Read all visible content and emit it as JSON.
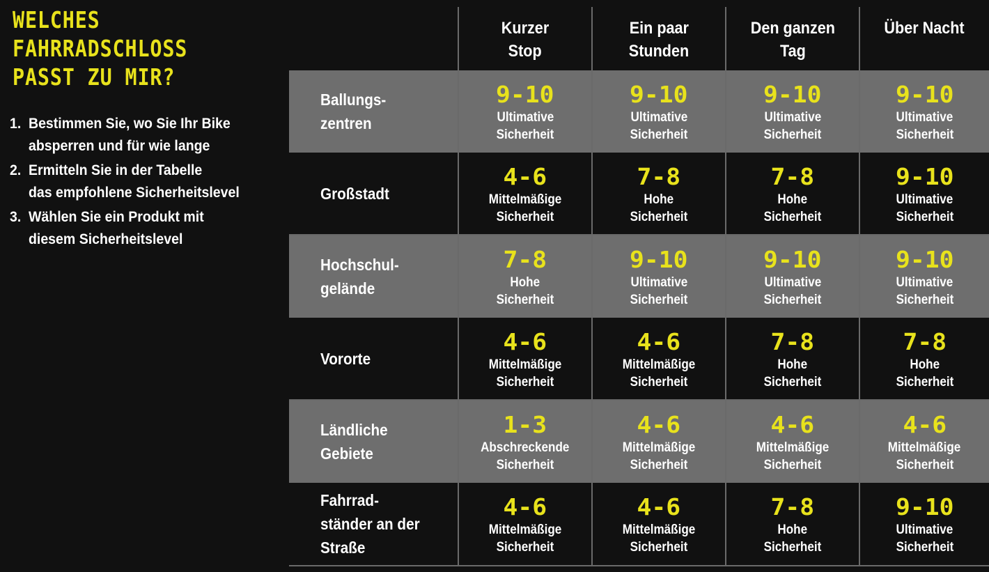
{
  "colors": {
    "background": "#111111",
    "accent_yellow": "#e8e21c",
    "row_grey": "#6e6e6e",
    "text_white": "#ffffff"
  },
  "headline": {
    "line1": "Welches",
    "line2": "Fahrradschloss",
    "line3": "passt zu mir?"
  },
  "steps": [
    {
      "num": "1.",
      "line1": "Bestimmen Sie, wo Sie Ihr Bike",
      "line2": "absperren und für wie lange"
    },
    {
      "num": "2.",
      "line1": "Ermitteln Sie in der Tabelle",
      "line2": "das empfohlene Sicherheitslevel"
    },
    {
      "num": "3.",
      "line1": "Wählen Sie ein Produkt mit",
      "line2": "diesem Sicherheitslevel"
    }
  ],
  "columns": [
    {
      "line1": "Kurzer",
      "line2": "Stop"
    },
    {
      "line1": "Ein paar",
      "line2": "Stunden"
    },
    {
      "line1": "Den ganzen",
      "line2": "Tag"
    },
    {
      "line1": "Über Nacht",
      "line2": ""
    }
  ],
  "rows": [
    {
      "label": [
        "Ballungs-",
        "zentren"
      ],
      "cells": [
        {
          "level": "9-10",
          "desc1": "Ultimative",
          "desc2": "Sicherheit"
        },
        {
          "level": "9-10",
          "desc1": "Ultimative",
          "desc2": "Sicherheit"
        },
        {
          "level": "9-10",
          "desc1": "Ultimative",
          "desc2": "Sicherheit"
        },
        {
          "level": "9-10",
          "desc1": "Ultimative",
          "desc2": "Sicherheit"
        }
      ]
    },
    {
      "label": [
        "Großstadt",
        "",
        ""
      ],
      "cells": [
        {
          "level": "4-6",
          "desc1": "Mittelmäßige",
          "desc2": "Sicherheit"
        },
        {
          "level": "7-8",
          "desc1": "Hohe",
          "desc2": "Sicherheit"
        },
        {
          "level": "7-8",
          "desc1": "Hohe",
          "desc2": "Sicherheit"
        },
        {
          "level": "9-10",
          "desc1": "Ultimative",
          "desc2": "Sicherheit"
        }
      ]
    },
    {
      "label": [
        "Hochschul-",
        "gelände"
      ],
      "cells": [
        {
          "level": "7-8",
          "desc1": "Hohe",
          "desc2": "Sicherheit"
        },
        {
          "level": "9-10",
          "desc1": "Ultimative",
          "desc2": "Sicherheit"
        },
        {
          "level": "9-10",
          "desc1": "Ultimative",
          "desc2": "Sicherheit"
        },
        {
          "level": "9-10",
          "desc1": "Ultimative",
          "desc2": "Sicherheit"
        }
      ]
    },
    {
      "label": [
        "Vororte"
      ],
      "cells": [
        {
          "level": "4-6",
          "desc1": "Mittelmäßige",
          "desc2": "Sicherheit"
        },
        {
          "level": "4-6",
          "desc1": "Mittelmäßige",
          "desc2": "Sicherheit"
        },
        {
          "level": "7-8",
          "desc1": "Hohe",
          "desc2": "Sicherheit"
        },
        {
          "level": "7-8",
          "desc1": "Hohe",
          "desc2": "Sicherheit"
        }
      ]
    },
    {
      "label": [
        "Ländliche",
        "Gebiete"
      ],
      "cells": [
        {
          "level": "1-3",
          "desc1": "Abschreckende",
          "desc2": "Sicherheit"
        },
        {
          "level": "4-6",
          "desc1": "Mittelmäßige",
          "desc2": "Sicherheit"
        },
        {
          "level": "4-6",
          "desc1": "Mittelmäßige",
          "desc2": "Sicherheit"
        },
        {
          "level": "4-6",
          "desc1": "Mittelmäßige",
          "desc2": "Sicherheit"
        }
      ]
    },
    {
      "label": [
        "Fahrrad-",
        "ständer an der",
        "Straße"
      ],
      "cells": [
        {
          "level": "4-6",
          "desc1": "Mittelmäßige",
          "desc2": "Sicherheit"
        },
        {
          "level": "4-6",
          "desc1": "Mittelmäßige",
          "desc2": "Sicherheit"
        },
        {
          "level": "7-8",
          "desc1": "Hohe",
          "desc2": "Sicherheit"
        },
        {
          "level": "9-10",
          "desc1": "Ultimative",
          "desc2": "Sicherheit"
        }
      ]
    }
  ]
}
